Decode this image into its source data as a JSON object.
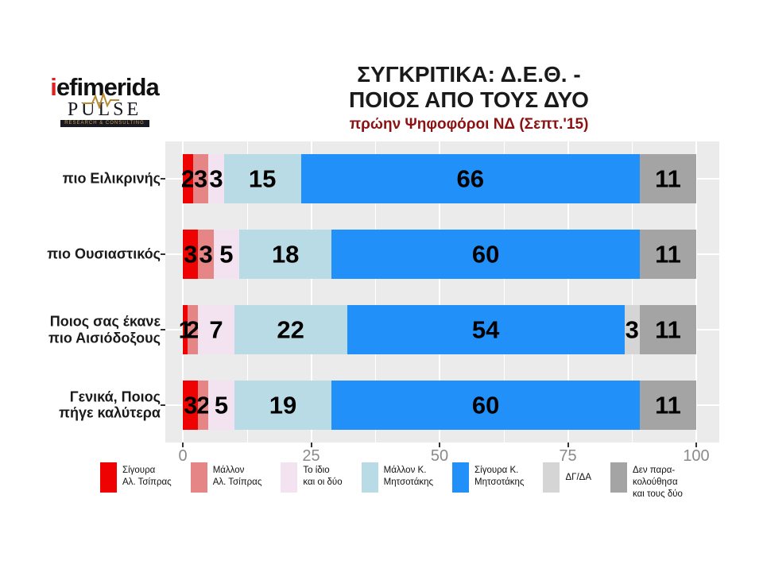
{
  "logo": {
    "brand_first_letter": "i",
    "brand_rest": "efimerida",
    "pulse_text": "PULSE",
    "pulse_sub": "RESEARCH & CONSULTING",
    "pulse_gold": "#b98a2f"
  },
  "header": {
    "title_line1": "ΣΥΓΚΡΙΤΙΚΑ:  Δ.Ε.Θ. -",
    "title_line2": "ΠΟΙΟΣ ΑΠΟ ΤΟΥΣ ΔΥΟ",
    "subtitle": "πρώην Ψηφοφόροι ΝΔ (Σεπτ.'15)",
    "subtitle_color": "#8b1212"
  },
  "chart_data": {
    "type": "bar",
    "stacked": true,
    "orientation": "horizontal",
    "title": "ΣΥΓΚΡΙΤΙΚΑ:  Δ.Ε.Θ. - ΠΟΙΟΣ ΑΠΟ ΤΟΥΣ ΔΥΟ",
    "subtitle": "πρώην Ψηφοφόροι ΝΔ (Σεπτ.'15)",
    "categories": [
      "πιο Ειλικρινής",
      "πιο Ουσιαστικός",
      "Ποιος σας έκανε\nπιο Αισιόδοξους",
      "Γενικά, Ποιος\nπήγε καλύτερα"
    ],
    "series": [
      {
        "name": "Σίγουρα\nΑλ. Τσίπρας",
        "color": "#ee0202",
        "values": [
          2,
          3,
          1,
          3
        ]
      },
      {
        "name": "Μάλλον\nΑλ. Τσίπρας",
        "color": "#e58585",
        "values": [
          3,
          3,
          2,
          2
        ]
      },
      {
        "name": "Το ίδιο\nκαι οι δύο",
        "color": "#f3e3f0",
        "values": [
          3,
          5,
          7,
          5
        ]
      },
      {
        "name": "Μάλλον Κ.\nΜητσοτάκης",
        "color": "#b9dbe6",
        "values": [
          15,
          18,
          22,
          19
        ]
      },
      {
        "name": "Σίγουρα Κ.\nΜητσοτάκης",
        "color": "#2191f9",
        "values": [
          66,
          60,
          54,
          60
        ]
      },
      {
        "name": "ΔΓ/ΔΑ",
        "color": "#d5d5d5",
        "values": [
          0,
          0,
          3,
          0
        ]
      },
      {
        "name": "Δεν παρα-\nκολούθησα\nκαι τους δύο",
        "color": "#a4a4a4",
        "values": [
          11,
          11,
          11,
          11
        ]
      }
    ],
    "x_ticks": [
      0,
      25,
      50,
      75,
      100
    ],
    "x_minor_ticks": [
      12.5,
      37.5,
      62.5,
      87.5
    ],
    "xlim": [
      0,
      100
    ],
    "grid": true,
    "panel_background": "#ebebeb",
    "legend_position": "bottom",
    "value_labels": "shown on every non-zero segment"
  }
}
